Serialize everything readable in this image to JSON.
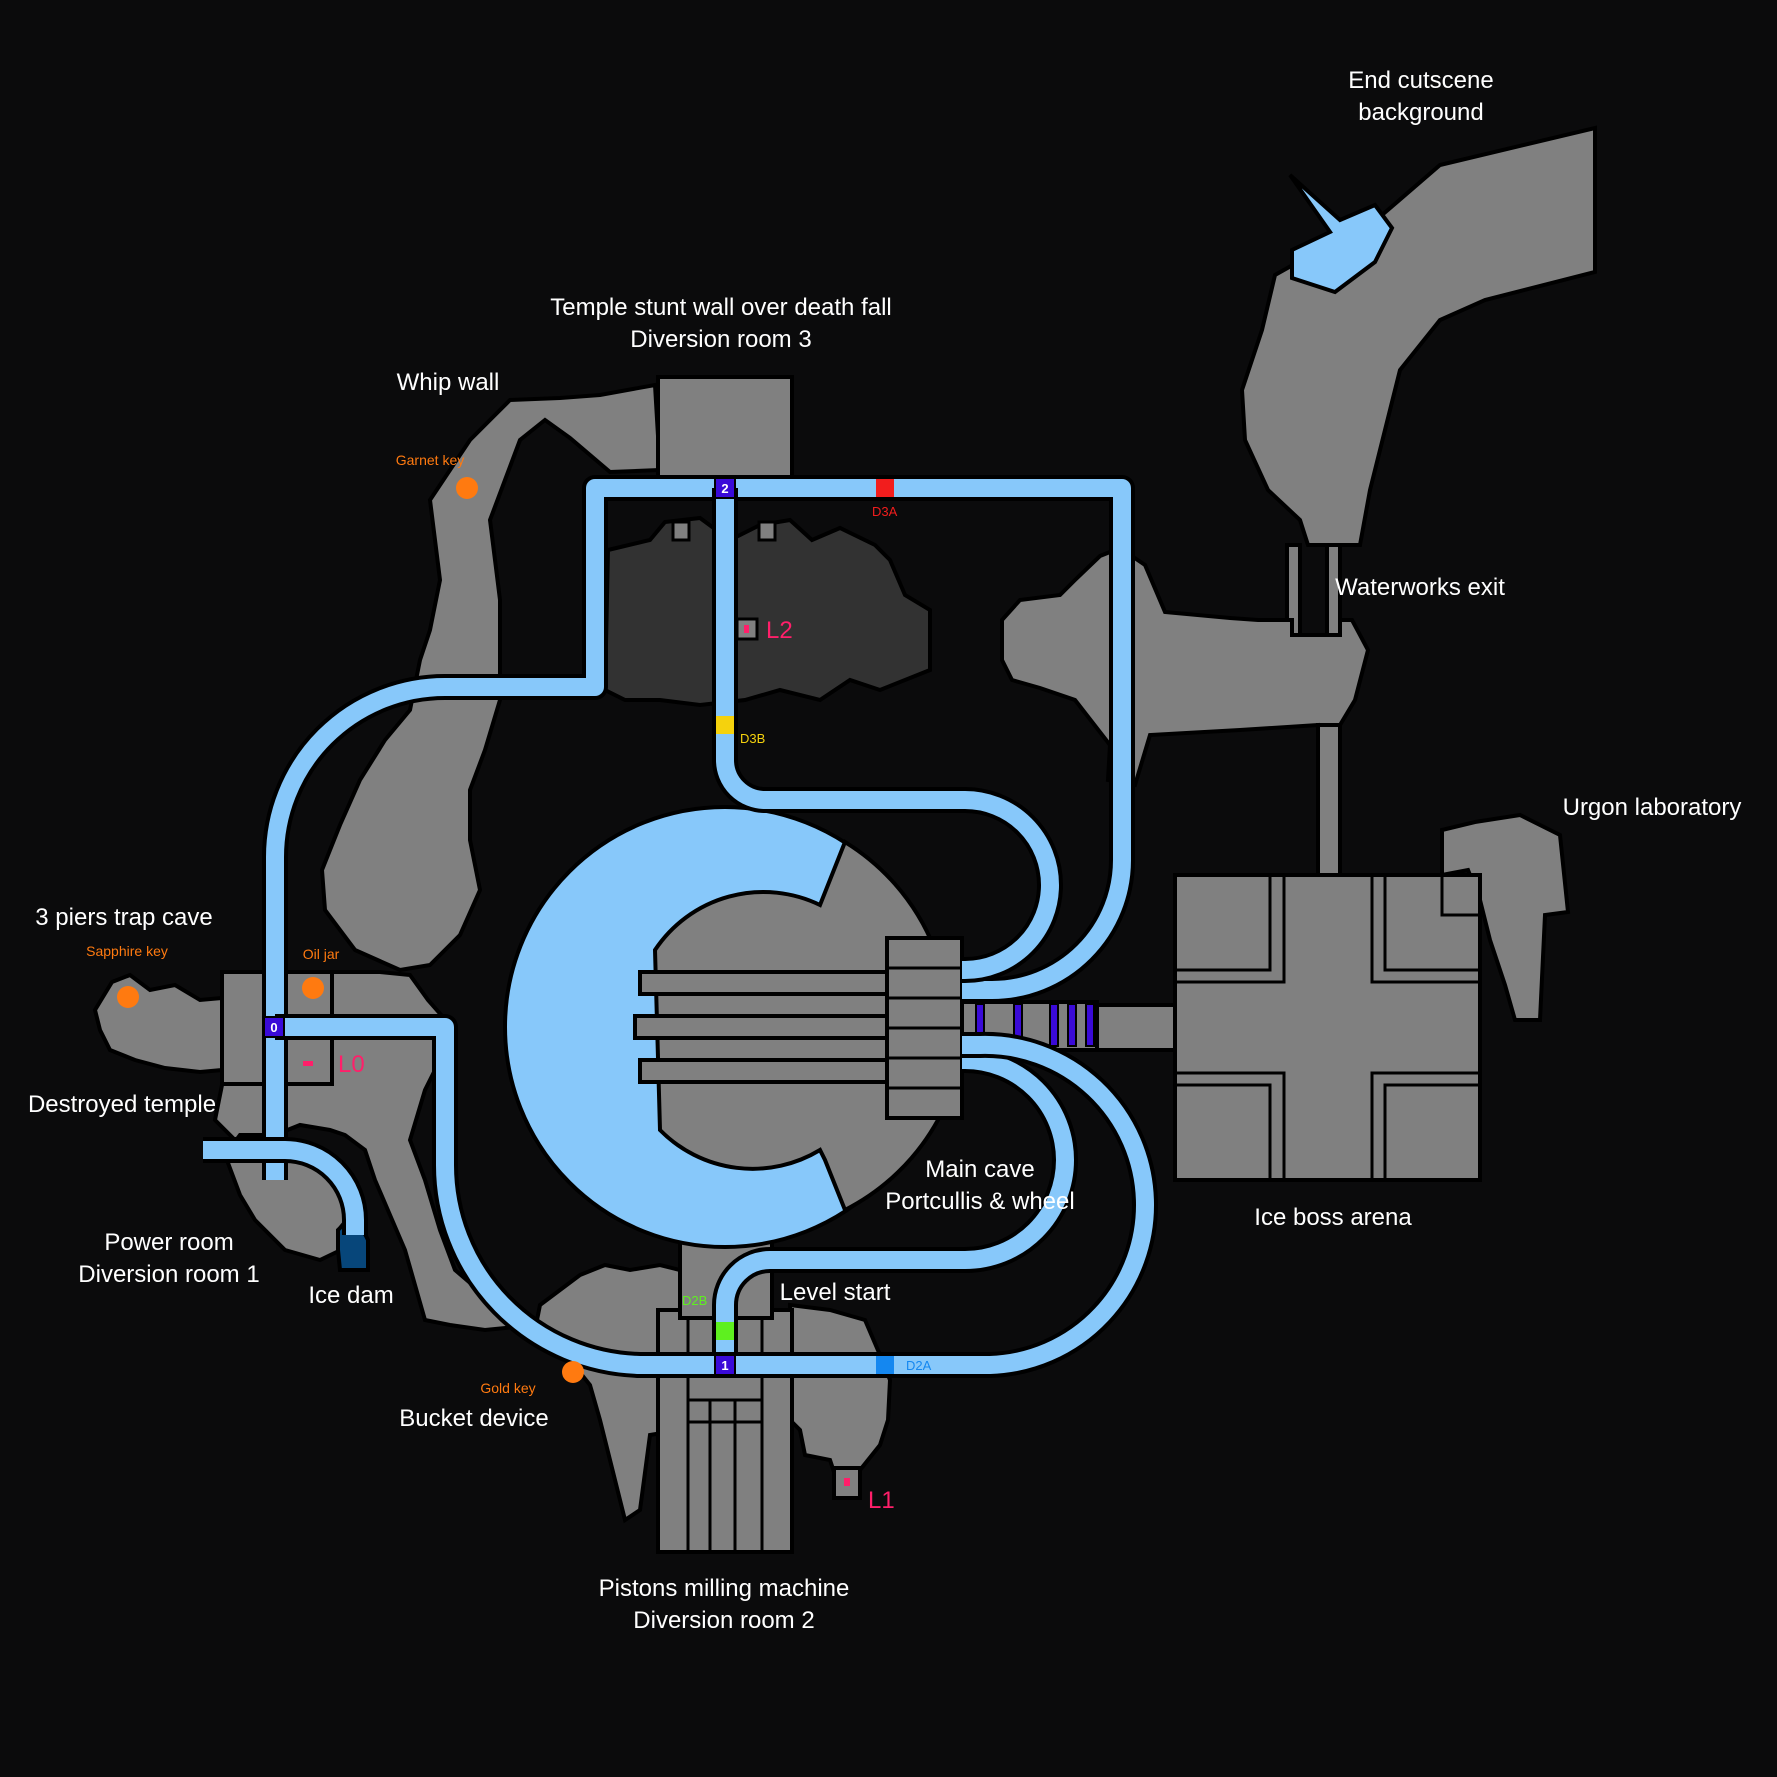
{
  "colors": {
    "background": "#0b0b0c",
    "rock": "#808080",
    "dark_room": "#323232",
    "water": "#87c8fa",
    "deep_water": "#07467a",
    "key_orange": "#ff7a10",
    "level_pink": "#ff1f6a",
    "junction_purple": "#3a0ad8",
    "door_d3a": "#f21d1d",
    "door_d3b": "#f5d20d",
    "door_d2b": "#5ef01f",
    "door_d2a": "#1487f0"
  },
  "labels": {
    "end_cutscene_l1": "End cutscene",
    "end_cutscene_l2": "background",
    "temple_l1": "Temple stunt wall over death fall",
    "temple_l2": "Diversion room 3",
    "whip_wall": "Whip wall",
    "waterworks_exit": "Waterworks exit",
    "urgon_lab": "Urgon laboratory",
    "three_piers": "3 piers trap cave",
    "destroyed_temple": "Destroyed temple",
    "power_room_l1": "Power room",
    "power_room_l2": "Diversion room 1",
    "ice_dam": "Ice dam",
    "main_cave_l1": "Main cave",
    "main_cave_l2": "Portcullis & wheel",
    "ice_boss": "Ice boss arena",
    "level_start": "Level start",
    "bucket_device": "Bucket device",
    "pistons_l1": "Pistons milling machine",
    "pistons_l2": "Diversion room 2"
  },
  "keys": {
    "garnet": "Garnet key",
    "sapphire": "Sapphire key",
    "oil_jar": "Oil jar",
    "gold": "Gold key"
  },
  "levels": {
    "l0": "L0",
    "l1": "L1",
    "l2": "L2"
  },
  "doors": {
    "d3a": "D3A",
    "d3b": "D3B",
    "d2a": "D2A",
    "d2b": "D2B"
  },
  "junctions": {
    "j0": "0",
    "j1": "1",
    "j2": "2"
  }
}
